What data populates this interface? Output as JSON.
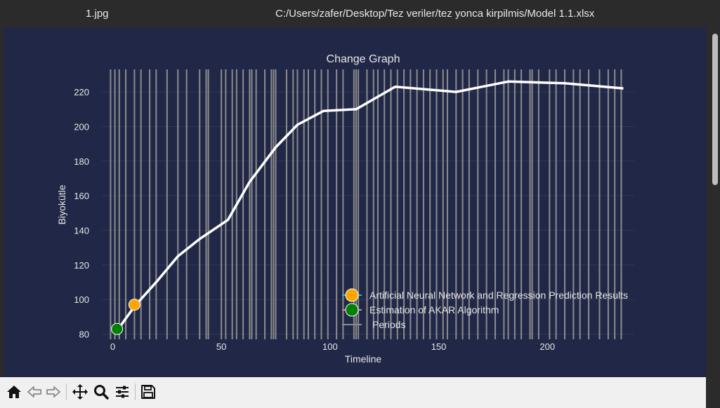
{
  "window": {
    "tab_image": "1.jpg",
    "tab_path": "C:/Users/zafer/Desktop/Tez veriler/tez yonca kirpilmis/Model 1.1.xlsx"
  },
  "toolbar": {
    "home": "home-icon",
    "back": "arrow-left-icon",
    "forward": "arrow-right-icon",
    "pan": "move-icon",
    "zoom": "zoom-icon",
    "configure": "sliders-icon",
    "save": "save-icon"
  },
  "colors": {
    "plot_bg": "#212847",
    "line": "#ffffff",
    "periods": "#8c8c8c",
    "ann_marker": "#ffa500",
    "akar_marker": "#008000"
  },
  "chart_data": {
    "type": "line",
    "title": "Change Graph",
    "xlabel": "Timeline",
    "ylabel": "Biyokütle",
    "xlim": [
      -5,
      240
    ],
    "ylim": [
      77,
      233
    ],
    "xticks": [
      "0",
      "50",
      "100",
      "150",
      "200"
    ],
    "yticks": [
      "80",
      "100",
      "120",
      "140",
      "160",
      "180",
      "200",
      "220"
    ],
    "grid": "horizontal",
    "legend_position": "lower-right",
    "series": [
      {
        "name": "",
        "role": "curve",
        "x": [
          2,
          10,
          20,
          30,
          40,
          53,
          63,
          75,
          85,
          97,
          112,
          130,
          158,
          182,
          208,
          235
        ],
        "y": [
          82,
          96,
          110,
          125,
          135,
          146,
          168,
          188,
          201,
          209,
          210,
          223,
          220,
          226,
          225,
          222
        ]
      },
      {
        "name": "Artificial Neural Network and Regression Prediction Results",
        "x": [
          10
        ],
        "y": [
          97
        ]
      },
      {
        "name": "Estimation of AKAR Algorithm",
        "x": [
          2
        ],
        "y": [
          83
        ]
      },
      {
        "name": "Periods",
        "x_positions": [
          -1,
          1,
          3,
          6,
          10,
          13,
          17,
          20,
          25,
          30,
          34,
          40,
          43,
          44,
          50,
          52,
          55,
          57,
          60,
          63,
          64,
          66,
          70,
          73,
          74,
          75,
          80,
          83,
          85,
          88,
          90,
          93,
          96,
          99,
          103,
          106,
          111,
          112,
          113,
          117,
          120,
          122,
          125,
          128,
          131,
          134,
          137,
          140,
          143,
          146,
          149,
          152,
          154,
          158,
          161,
          164,
          168,
          172,
          176,
          180,
          182,
          185,
          188,
          192,
          193,
          196,
          201,
          204,
          208,
          212,
          215,
          219,
          224,
          228,
          231,
          234
        ]
      }
    ]
  }
}
